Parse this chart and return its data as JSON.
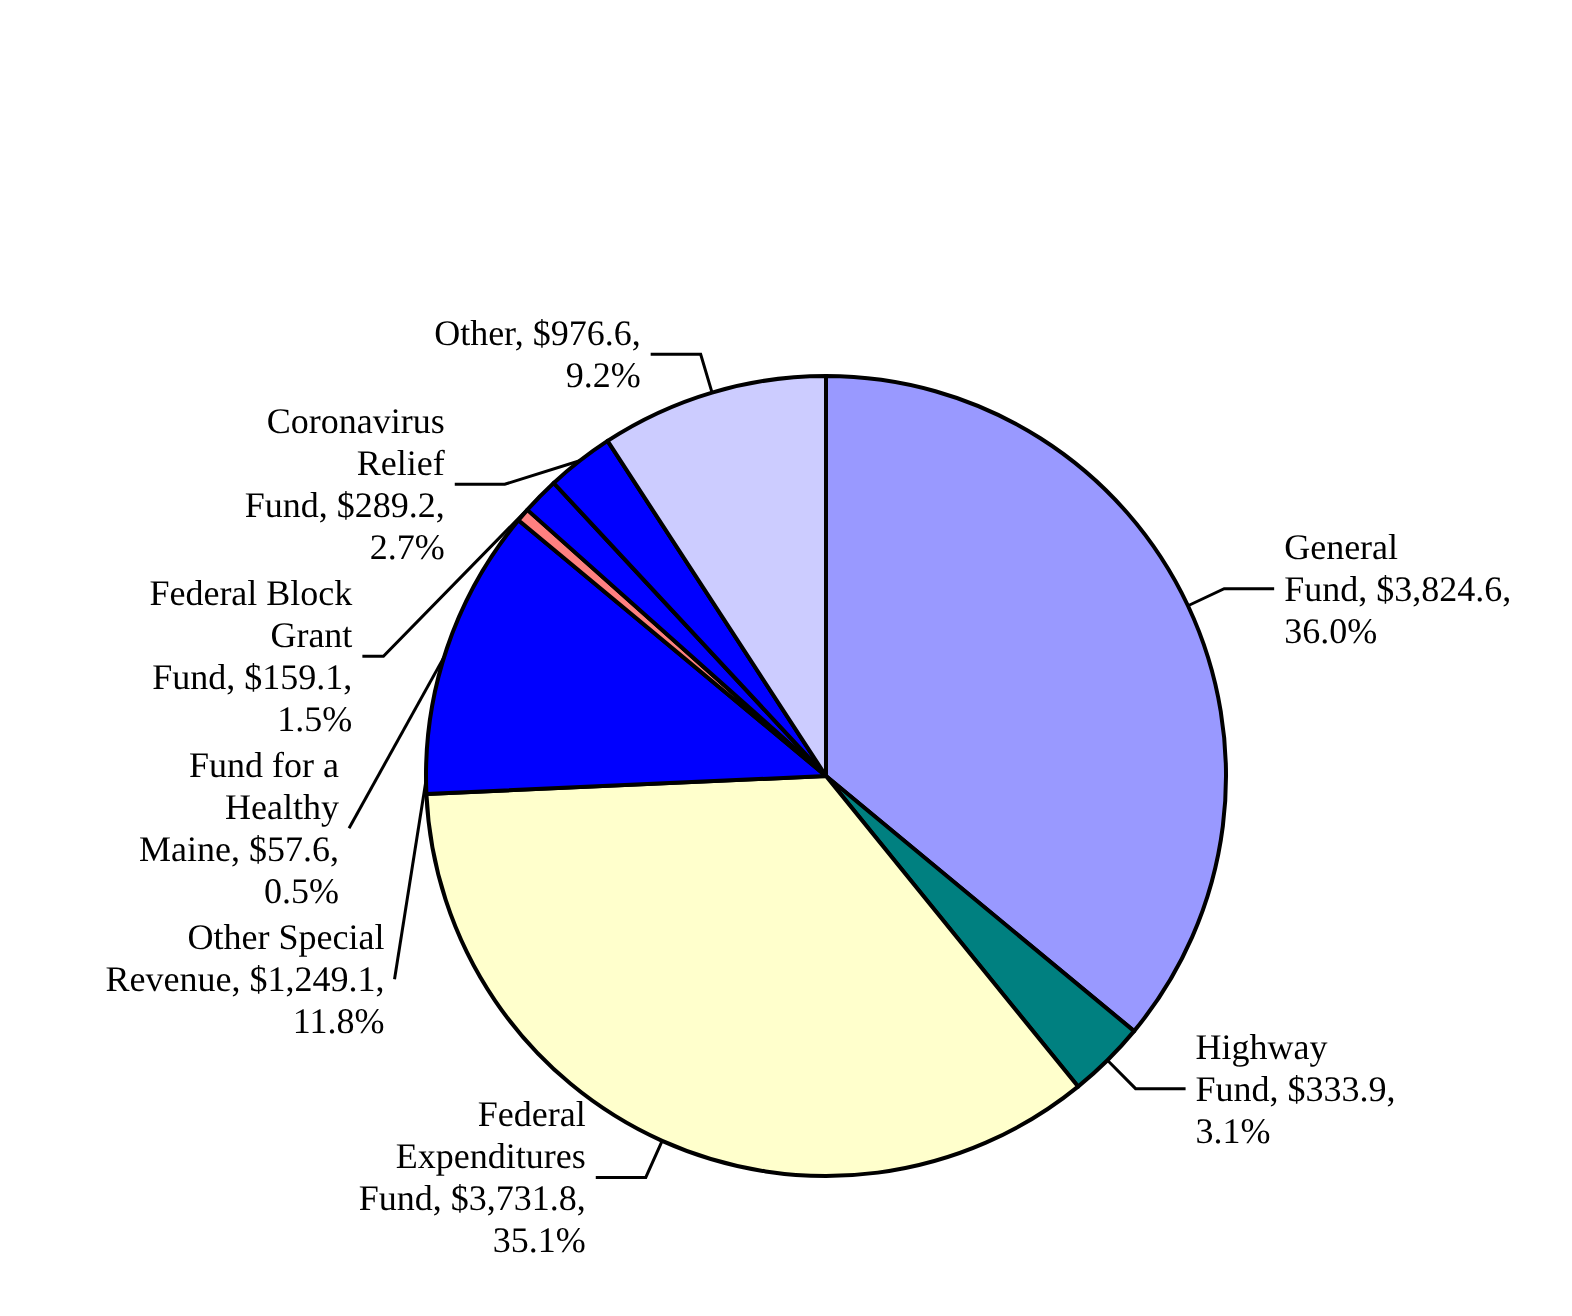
{
  "chart_data": {
    "type": "pie",
    "categories": [
      "General Fund",
      "Highway Fund",
      "Federal Expenditures Fund",
      "Other Special Revenue",
      "Fund for a Healthy Maine",
      "Federal Block Grant Fund",
      "Coronavirus Relief Fund",
      "Other"
    ],
    "values": [
      3824.6,
      333.9,
      3731.8,
      1249.1,
      57.6,
      159.1,
      289.2,
      976.6
    ],
    "value_labels": [
      "$3,824.6, 36.0%",
      "$333.9, 3.1%",
      "$3,731.8, 35.1%",
      "$1,249.1, 11.8%",
      "$57.6, 0.5%",
      "$159.1, 1.5%",
      "$289.2, 2.7%",
      "$976.6, 9.2%"
    ],
    "colors": [
      "#9999ff",
      "#008080",
      "#ffffcc",
      "#0000ff",
      "#ff8080",
      "#0000ff",
      "#0000ff",
      "#ccccff"
    ],
    "legend": false
  }
}
